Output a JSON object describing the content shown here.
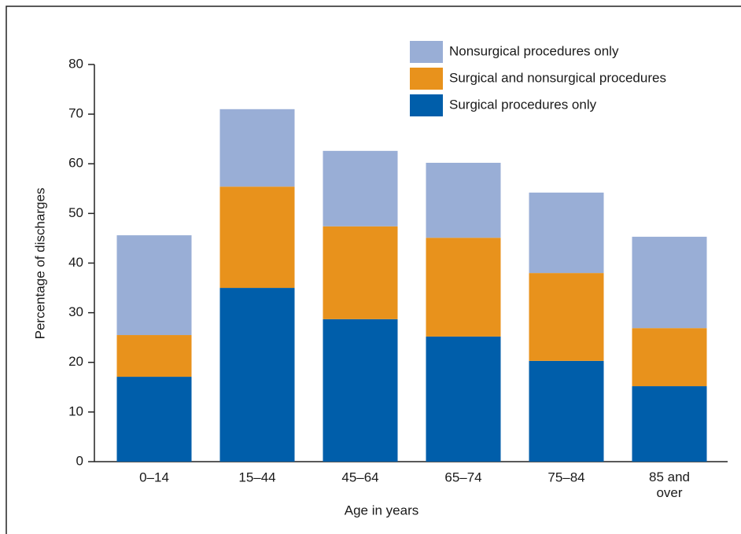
{
  "chart_data": {
    "type": "stacked-bar",
    "xlabel": "Age in years",
    "ylabel": "Percentage of discharges",
    "categories": [
      "0–14",
      "15–44",
      "45–64",
      "65–74",
      "75–84",
      "85 and over"
    ],
    "series": [
      {
        "name": "Surgical procedures only",
        "color": "#005eaa",
        "values": [
          17.1,
          35.0,
          28.7,
          25.2,
          20.3,
          15.2
        ]
      },
      {
        "name": "Surgical and nonsurgical procedures",
        "color": "#e8921c",
        "values": [
          8.4,
          20.4,
          18.7,
          19.9,
          17.7,
          11.7
        ]
      },
      {
        "name": "Nonsurgical procedures only",
        "color": "#99aed6",
        "values": [
          20.1,
          15.6,
          15.2,
          15.1,
          16.2,
          18.4
        ]
      }
    ],
    "ylim": [
      0,
      80
    ],
    "yticks": [
      0,
      10,
      20,
      30,
      40,
      50,
      60,
      70,
      80
    ],
    "grid": false,
    "legend": "top-right"
  }
}
